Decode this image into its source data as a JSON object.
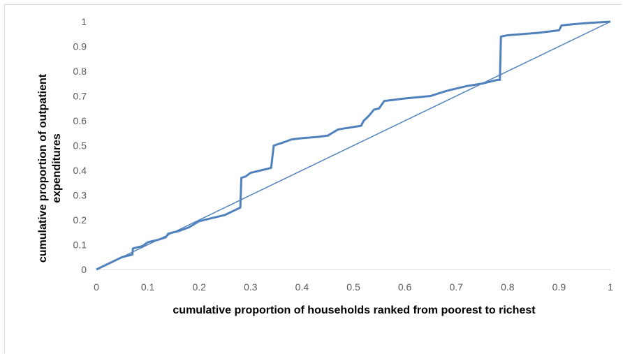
{
  "chart_data": {
    "type": "line",
    "title": "",
    "xlabel": "cumulative proportion of households ranked from poorest to richest",
    "ylabel": [
      "cumulative proportion of outpatient",
      "expenditures"
    ],
    "xlim": [
      0,
      1
    ],
    "ylim": [
      0,
      1
    ],
    "x_ticks": [
      "0",
      "0.1",
      "0.2",
      "0.3",
      "0.4",
      "0.5",
      "0.6",
      "0.7",
      "0.8",
      "0.9",
      "1"
    ],
    "y_ticks": [
      "0",
      "0.1",
      "0.2",
      "0.3",
      "0.4",
      "0.5",
      "0.6",
      "0.7",
      "0.8",
      "0.9",
      "1"
    ],
    "grid": false,
    "legend": "none",
    "series": [
      {
        "role": "concentration-curve",
        "color": "#4f81bd",
        "points": [
          [
            0,
            0
          ],
          [
            0.01,
            0.01
          ],
          [
            0.02,
            0.02
          ],
          [
            0.03,
            0.03
          ],
          [
            0.04,
            0.04
          ],
          [
            0.05,
            0.05
          ],
          [
            0.06,
            0.055
          ],
          [
            0.07,
            0.06
          ],
          [
            0.071,
            0.085
          ],
          [
            0.09,
            0.095
          ],
          [
            0.1,
            0.11
          ],
          [
            0.12,
            0.12
          ],
          [
            0.135,
            0.13
          ],
          [
            0.14,
            0.145
          ],
          [
            0.16,
            0.155
          ],
          [
            0.18,
            0.17
          ],
          [
            0.2,
            0.195
          ],
          [
            0.22,
            0.205
          ],
          [
            0.25,
            0.22
          ],
          [
            0.27,
            0.24
          ],
          [
            0.28,
            0.25
          ],
          [
            0.282,
            0.37
          ],
          [
            0.29,
            0.375
          ],
          [
            0.3,
            0.39
          ],
          [
            0.32,
            0.4
          ],
          [
            0.34,
            0.41
          ],
          [
            0.345,
            0.5
          ],
          [
            0.36,
            0.51
          ],
          [
            0.38,
            0.525
          ],
          [
            0.4,
            0.53
          ],
          [
            0.43,
            0.535
          ],
          [
            0.45,
            0.54
          ],
          [
            0.47,
            0.565
          ],
          [
            0.5,
            0.575
          ],
          [
            0.515,
            0.58
          ],
          [
            0.52,
            0.6
          ],
          [
            0.53,
            0.62
          ],
          [
            0.54,
            0.645
          ],
          [
            0.55,
            0.65
          ],
          [
            0.56,
            0.68
          ],
          [
            0.58,
            0.685
          ],
          [
            0.6,
            0.69
          ],
          [
            0.65,
            0.7
          ],
          [
            0.68,
            0.72
          ],
          [
            0.7,
            0.73
          ],
          [
            0.72,
            0.74
          ],
          [
            0.75,
            0.75
          ],
          [
            0.78,
            0.765
          ],
          [
            0.785,
            0.765
          ],
          [
            0.787,
            0.94
          ],
          [
            0.8,
            0.945
          ],
          [
            0.83,
            0.95
          ],
          [
            0.86,
            0.955
          ],
          [
            0.9,
            0.965
          ],
          [
            0.905,
            0.985
          ],
          [
            0.93,
            0.99
          ],
          [
            0.96,
            0.995
          ],
          [
            1,
            1
          ]
        ]
      },
      {
        "role": "line-of-equality",
        "color": "#4f81bd",
        "points": [
          [
            0,
            0
          ],
          [
            1,
            1
          ]
        ]
      }
    ]
  }
}
